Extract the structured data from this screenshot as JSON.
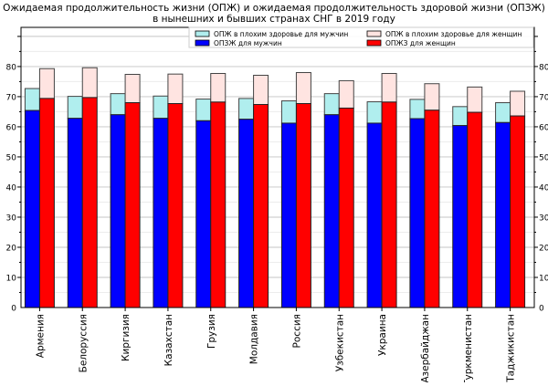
{
  "chart_data": {
    "type": "bar",
    "title": "Ожидаемая продолжительность жизни (ОПЖ) и ожидаемая продолжительность здоровой жизни (ОПЗЖ)",
    "subtitle": "в нынешних и бывших странах СНГ в 2019 году",
    "xlabel": "",
    "ylabel": "",
    "ylim": [
      0,
      93
    ],
    "yticks": [
      0,
      10,
      20,
      30,
      40,
      50,
      60,
      70,
      80
    ],
    "grid": true,
    "legend_position": "top-right",
    "categories": [
      "Армения",
      "Белоруссия",
      "Киргизия",
      "Казахстан",
      "Грузия",
      "Молдавия",
      "Россия",
      "Узбекистан",
      "Украина",
      "Азербайджан",
      "Туркменистан",
      "Таджикистан"
    ],
    "series": [
      {
        "name": "ОПЗЖ для мужчин",
        "color": "#0000ff",
        "values": [
          65.4,
          62.8,
          64.0,
          62.8,
          62.0,
          62.5,
          61.2,
          64.0,
          61.2,
          62.7,
          60.4,
          61.4
        ]
      },
      {
        "name": "ОПЖ в плохим здоровье для мужчин",
        "color": "#b0eeee",
        "stacked_on": "ОПЗЖ для мужчин",
        "total_values": [
          72.7,
          70.1,
          71.0,
          70.2,
          69.2,
          69.4,
          68.6,
          71.0,
          68.3,
          69.1,
          66.7,
          68.0
        ]
      },
      {
        "name": "ОПЖЗ для женщин",
        "color": "#ff0000",
        "values": [
          69.4,
          69.7,
          68.0,
          67.7,
          68.2,
          67.4,
          67.7,
          66.2,
          68.2,
          65.5,
          64.8,
          63.6
        ]
      },
      {
        "name": "ОПЖ в плохим здоровье для женщин",
        "color": "#ffe4e1",
        "stacked_on": "ОПЖЗ для женщин",
        "total_values": [
          79.3,
          79.6,
          77.4,
          77.5,
          77.7,
          77.1,
          78.0,
          75.3,
          77.7,
          74.3,
          73.2,
          71.8
        ]
      }
    ],
    "legend": [
      {
        "label": "ОПЖ в плохим здоровье для мужчин",
        "color": "#b0eeee"
      },
      {
        "label": "ОПЖ в плохим здоровье для женщин",
        "color": "#ffe4e1"
      },
      {
        "label": "ОПЗЖ для мужчин",
        "color": "#0000ff"
      },
      {
        "label": "ОПЖЗ для женщин",
        "color": "#ff0000"
      }
    ]
  }
}
